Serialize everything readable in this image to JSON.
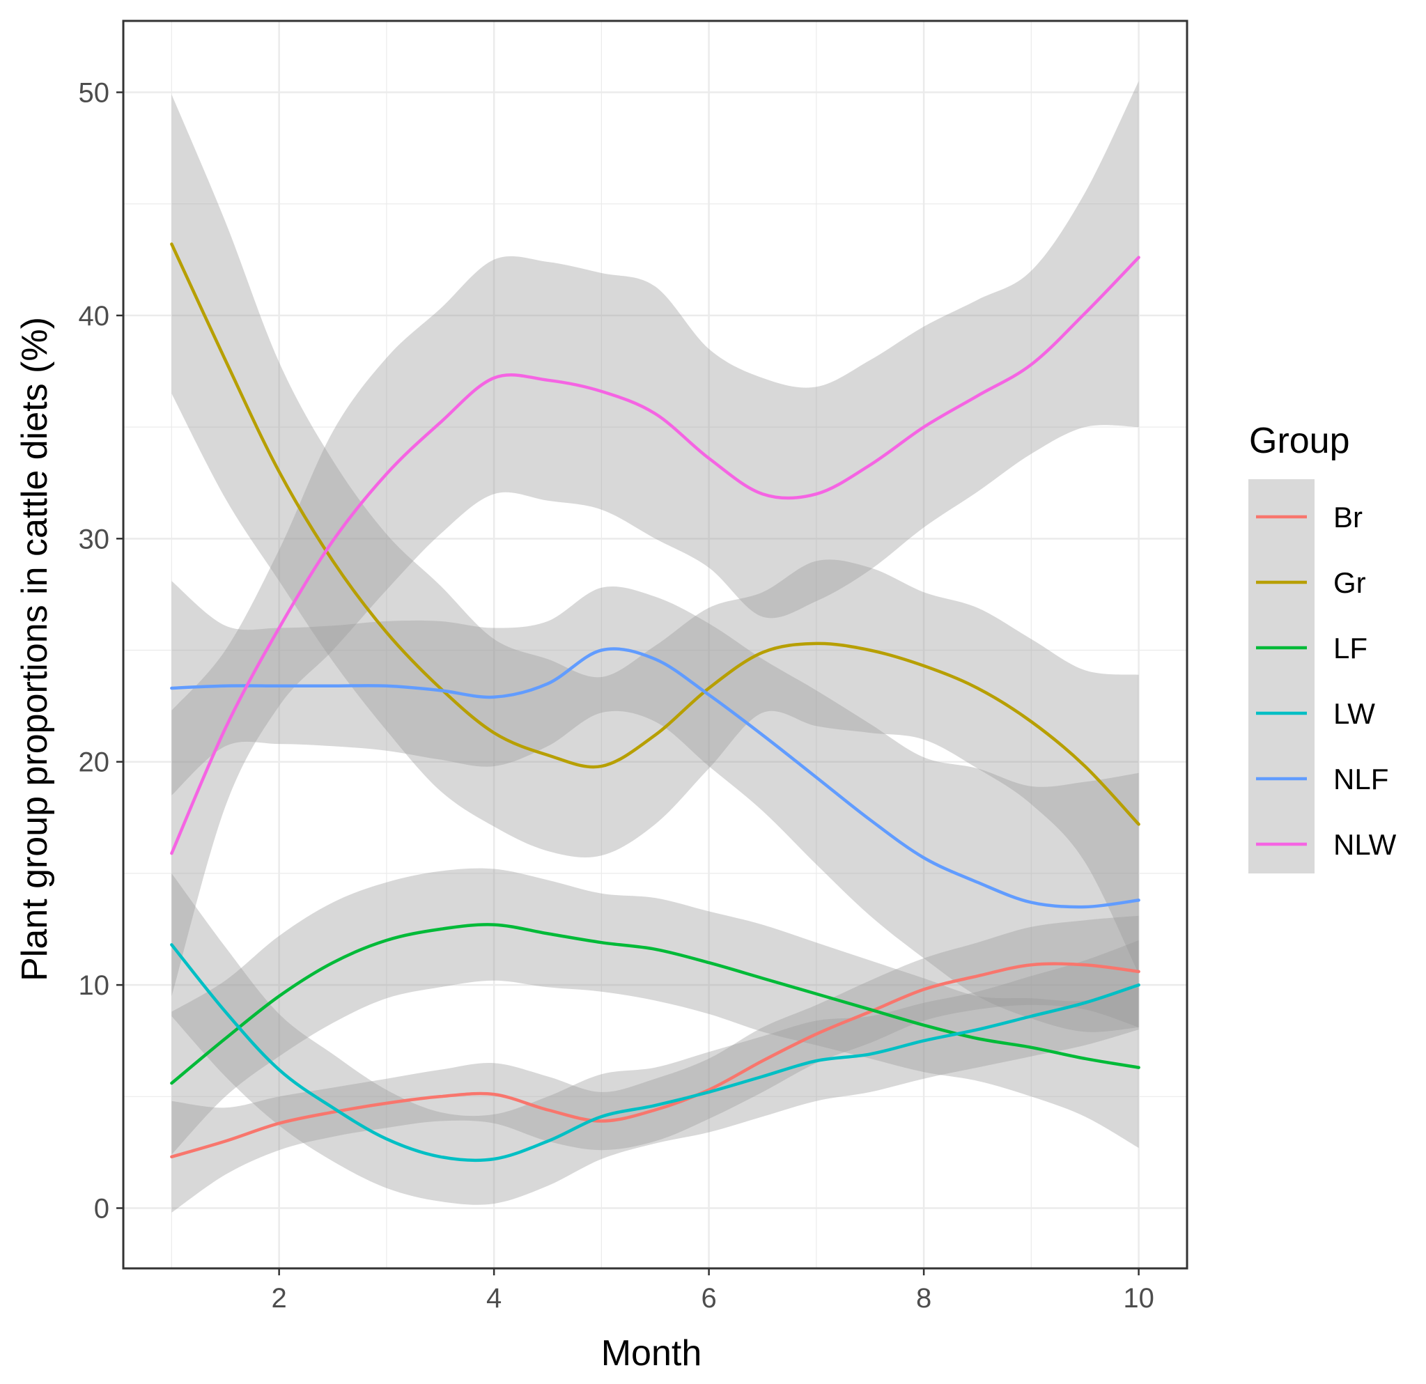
{
  "chart_data": {
    "type": "line",
    "title": "",
    "xlabel": "Month",
    "ylabel": "Plant group proportions in cattle diets (%)",
    "xlim": [
      0.55,
      10.45
    ],
    "ylim": [
      -2.7,
      53.2
    ],
    "xticks": [
      2,
      4,
      6,
      8,
      10
    ],
    "yticks": [
      0,
      10,
      20,
      30,
      40,
      50
    ],
    "grid": true,
    "legend": {
      "title": "Group",
      "position": "right"
    },
    "x": [
      1,
      1.5,
      2,
      2.5,
      3,
      3.5,
      4,
      4.5,
      5,
      5.5,
      6,
      6.5,
      7,
      7.5,
      8,
      8.5,
      9,
      9.5,
      10
    ],
    "series": [
      {
        "name": "Br",
        "color": "#F8766D",
        "values": [
          2.3,
          3.0,
          3.8,
          4.3,
          4.7,
          5.0,
          5.1,
          4.4,
          3.9,
          4.4,
          5.3,
          6.6,
          7.8,
          8.8,
          9.8,
          10.4,
          10.9,
          10.9,
          10.6
        ],
        "lower": [
          -0.2,
          1.5,
          2.6,
          3.2,
          3.6,
          3.9,
          3.8,
          3.0,
          2.6,
          3.0,
          4.0,
          5.2,
          6.5,
          7.4,
          8.4,
          8.9,
          9.1,
          8.9,
          8.1
        ],
        "upper": [
          4.8,
          4.5,
          5.0,
          5.4,
          5.8,
          6.2,
          6.5,
          5.9,
          5.2,
          5.8,
          6.7,
          8.1,
          9.1,
          10.2,
          11.2,
          11.9,
          12.6,
          12.9,
          13.1
        ]
      },
      {
        "name": "Gr",
        "color": "#B79F00",
        "values": [
          43.2,
          38.0,
          33.0,
          29.0,
          25.8,
          23.3,
          21.3,
          20.3,
          19.8,
          21.2,
          23.3,
          24.9,
          25.3,
          25.0,
          24.3,
          23.3,
          21.8,
          19.8,
          17.2
        ],
        "lower": [
          36.5,
          31.8,
          28.1,
          24.5,
          21.4,
          18.7,
          17.1,
          16.0,
          15.8,
          17.2,
          19.7,
          22.2,
          21.6,
          21.3,
          21.0,
          19.7,
          18.1,
          15.5,
          10.5
        ],
        "upper": [
          49.9,
          44.2,
          37.9,
          33.5,
          30.2,
          27.9,
          25.5,
          24.6,
          23.8,
          25.2,
          26.9,
          27.6,
          29.0,
          28.7,
          27.6,
          26.9,
          25.5,
          24.1,
          23.9
        ]
      },
      {
        "name": "LF",
        "color": "#00BA38",
        "values": [
          5.6,
          7.6,
          9.5,
          11.0,
          12.0,
          12.5,
          12.7,
          12.3,
          11.9,
          11.6,
          11.0,
          10.3,
          9.6,
          8.9,
          8.2,
          7.6,
          7.2,
          6.7,
          6.3
        ],
        "lower": [
          2.4,
          5.0,
          6.8,
          8.3,
          9.4,
          9.9,
          10.2,
          9.9,
          9.7,
          9.3,
          8.7,
          7.9,
          7.3,
          6.7,
          6.1,
          5.7,
          5.0,
          4.1,
          2.7
        ],
        "upper": [
          8.8,
          10.2,
          12.2,
          13.7,
          14.6,
          15.1,
          15.2,
          14.7,
          14.1,
          13.9,
          13.3,
          12.7,
          11.9,
          11.1,
          10.3,
          9.5,
          9.4,
          9.3,
          9.9
        ]
      },
      {
        "name": "LW",
        "color": "#00BFC4",
        "values": [
          11.8,
          8.8,
          6.2,
          4.5,
          3.1,
          2.3,
          2.2,
          3.0,
          4.1,
          4.6,
          5.2,
          5.9,
          6.6,
          6.9,
          7.5,
          8.0,
          8.6,
          9.2,
          10.0
        ],
        "lower": [
          8.6,
          5.9,
          3.7,
          2.1,
          0.9,
          0.3,
          0.2,
          1.0,
          2.2,
          2.9,
          3.4,
          4.1,
          4.8,
          5.2,
          5.8,
          6.3,
          6.8,
          7.3,
          8.0
        ],
        "upper": [
          15.0,
          11.7,
          8.7,
          6.9,
          5.3,
          4.3,
          4.2,
          5.0,
          6.0,
          6.3,
          7.0,
          7.7,
          8.4,
          8.6,
          9.2,
          9.7,
          10.4,
          11.1,
          12.0
        ]
      },
      {
        "name": "NLF",
        "color": "#619CFF",
        "values": [
          23.3,
          23.4,
          23.4,
          23.4,
          23.4,
          23.2,
          22.9,
          23.5,
          25.0,
          24.6,
          23.0,
          21.2,
          19.3,
          17.4,
          15.7,
          14.6,
          13.7,
          13.5,
          13.8
        ],
        "lower": [
          18.5,
          20.7,
          20.8,
          20.7,
          20.5,
          20.1,
          19.8,
          20.7,
          22.2,
          21.8,
          19.8,
          17.8,
          15.4,
          13.1,
          11.2,
          9.5,
          8.5,
          7.9,
          8.1
        ],
        "upper": [
          28.1,
          26.1,
          26.0,
          26.1,
          26.3,
          26.3,
          26.0,
          26.3,
          27.8,
          27.4,
          26.2,
          24.6,
          23.2,
          21.7,
          20.2,
          19.7,
          18.9,
          19.1,
          19.5
        ]
      },
      {
        "name": "NLW",
        "color": "#F564E3",
        "values": [
          15.9,
          21.5,
          26.0,
          29.9,
          32.9,
          35.2,
          37.2,
          37.1,
          36.6,
          35.6,
          33.6,
          32.0,
          32.0,
          33.3,
          35.0,
          36.4,
          37.8,
          40.1,
          42.6
        ],
        "lower": [
          9.5,
          18.0,
          22.5,
          25.0,
          27.7,
          30.2,
          32.0,
          31.7,
          31.3,
          30.0,
          28.7,
          26.5,
          27.2,
          28.6,
          30.5,
          32.1,
          33.8,
          35.0,
          35.0
        ],
        "upper": [
          22.3,
          25.0,
          29.5,
          34.8,
          38.1,
          40.3,
          42.5,
          42.4,
          41.9,
          41.3,
          38.5,
          37.2,
          36.8,
          38.0,
          39.5,
          40.7,
          42.0,
          45.5,
          50.5
        ]
      }
    ]
  }
}
